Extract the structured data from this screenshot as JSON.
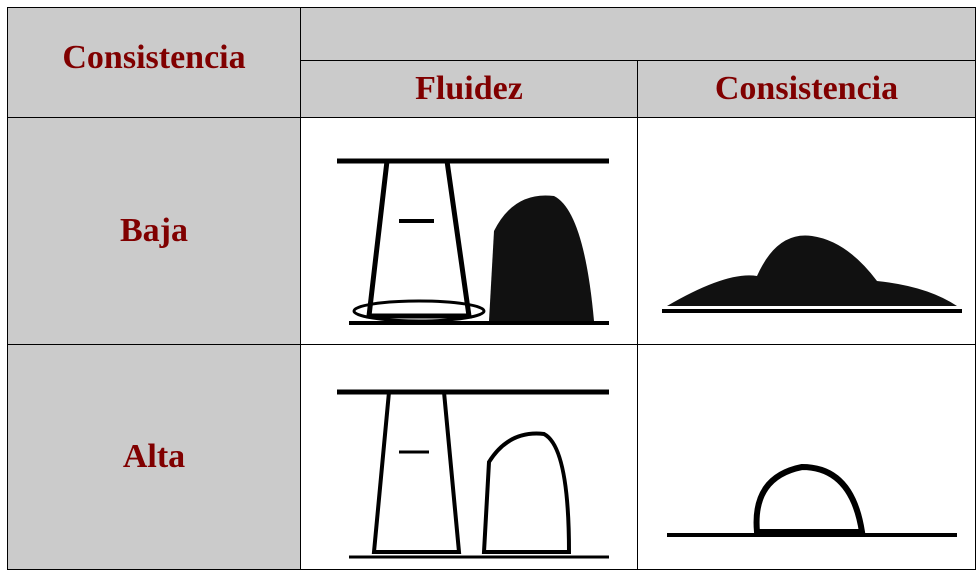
{
  "header": {
    "row_label": "Consistencia",
    "columns": [
      "Fluidez",
      "Consistencia"
    ]
  },
  "rows": [
    {
      "label": "Baja"
    },
    {
      "label": "Alta"
    }
  ]
}
